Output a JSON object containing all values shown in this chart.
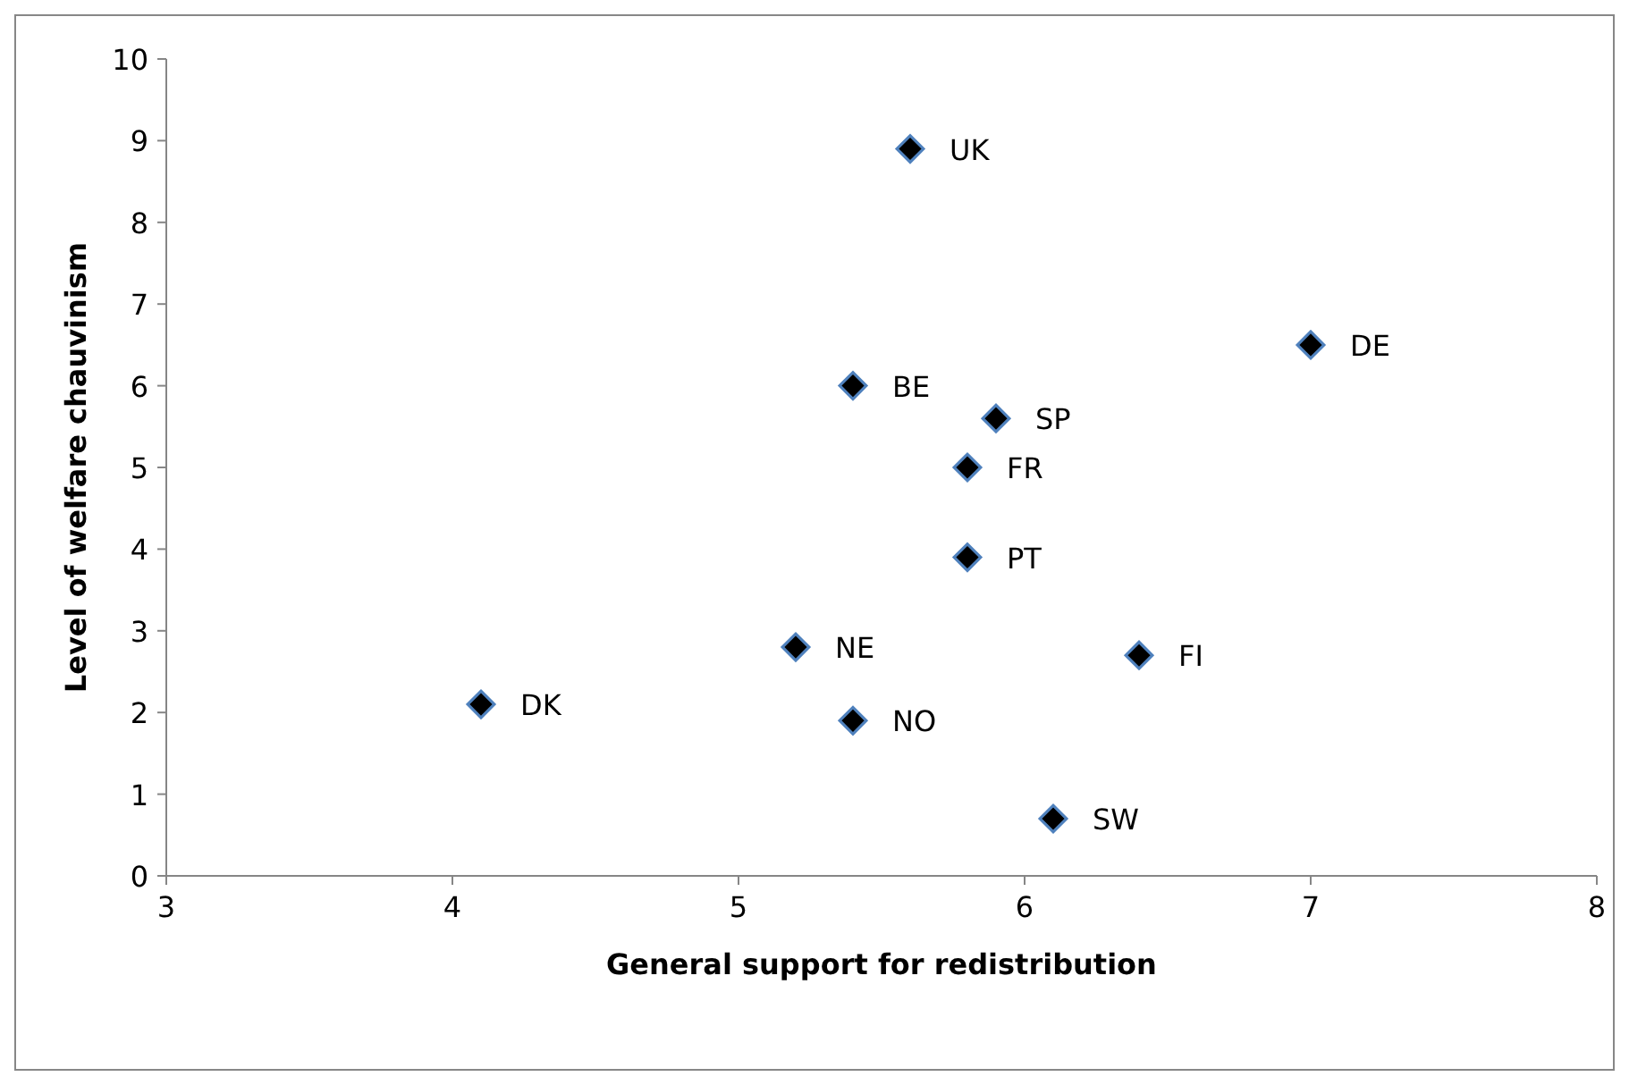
{
  "chart_data": {
    "type": "scatter",
    "xlabel": "General support for redistribution",
    "ylabel": "Level of welfare chauvinism",
    "x": [
      5.6,
      7.0,
      5.4,
      5.9,
      5.8,
      5.8,
      5.2,
      6.4,
      4.1,
      5.4,
      6.1
    ],
    "series": [
      {
        "color": "#000000",
        "values": [
          8.9,
          6.5,
          6.0,
          5.6,
          5.0,
          3.9,
          2.8,
          2.7,
          2.1,
          1.9,
          0.7
        ]
      }
    ],
    "marker": "diamond",
    "xlim": [
      3,
      8
    ],
    "xticks": [
      3,
      4,
      5,
      6,
      7,
      8
    ],
    "ylim": [
      0,
      10
    ],
    "yticks": [
      0,
      1,
      2,
      3,
      4,
      5,
      6,
      7,
      8,
      9,
      10
    ],
    "annotations": [
      {
        "text": "UK",
        "x": 5.6,
        "y": 8.9
      },
      {
        "text": "DE",
        "x": 7.0,
        "y": 6.5
      },
      {
        "text": "BE",
        "x": 5.4,
        "y": 6.0
      },
      {
        "text": "SP",
        "x": 5.9,
        "y": 5.6
      },
      {
        "text": "FR",
        "x": 5.8,
        "y": 5.0
      },
      {
        "text": "PT",
        "x": 5.8,
        "y": 3.9
      },
      {
        "text": "NE",
        "x": 5.2,
        "y": 2.8
      },
      {
        "text": "FI",
        "x": 6.4,
        "y": 2.7
      },
      {
        "text": "DK",
        "x": 4.1,
        "y": 2.1
      },
      {
        "text": "NO",
        "x": 5.4,
        "y": 1.9
      },
      {
        "text": "SW",
        "x": 6.1,
        "y": 0.7
      }
    ]
  }
}
